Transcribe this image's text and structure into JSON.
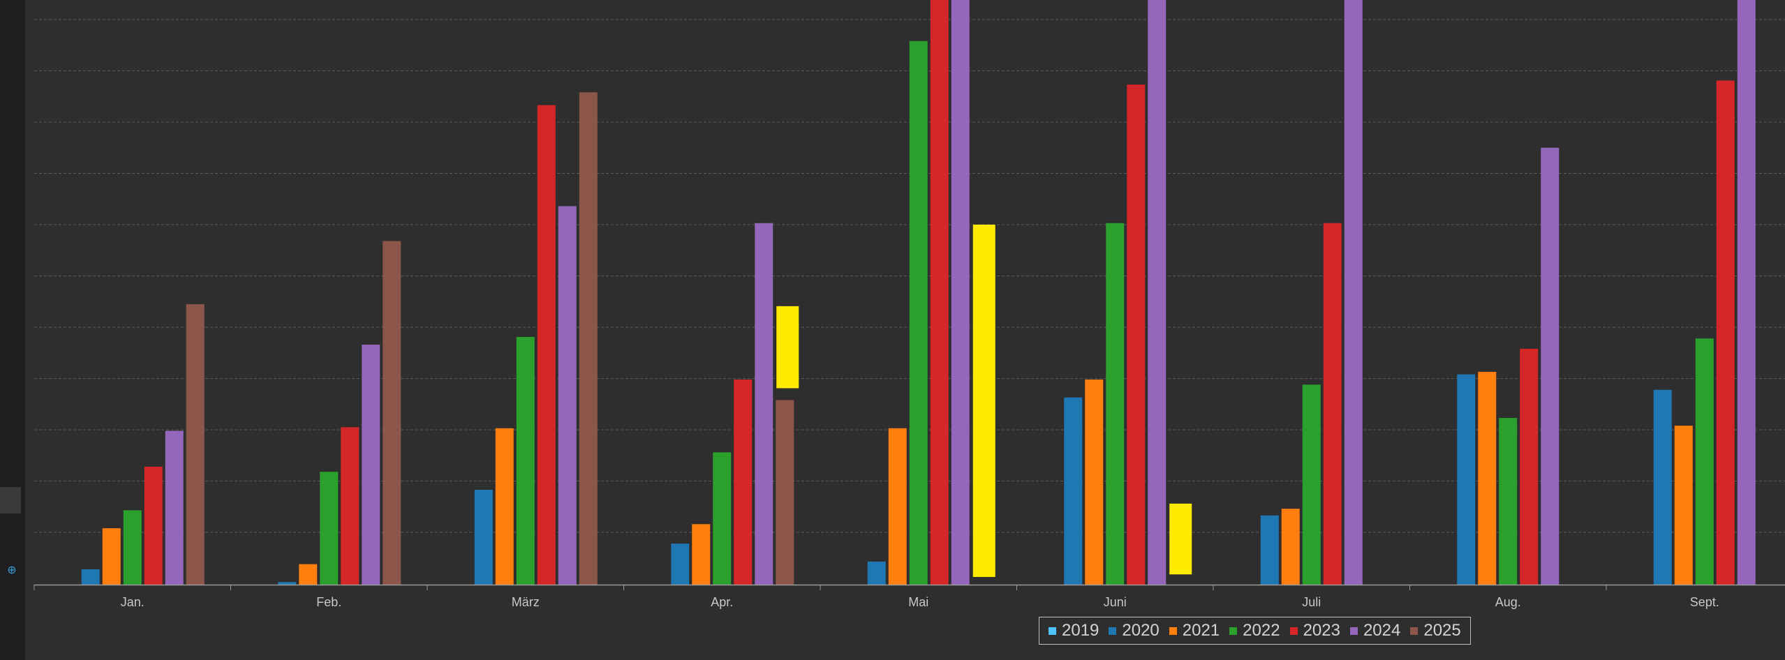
{
  "chart_data": {
    "type": "bar",
    "categories": [
      "Jan.",
      "Feb.",
      "März",
      "Apr.",
      "Mai",
      "Juni",
      "Juli",
      "Aug.",
      "Sept."
    ],
    "ylim": [
      0,
      11.4
    ],
    "grid": true,
    "legend_position": "bottom-center",
    "series": [
      {
        "name": "2019",
        "color": "#4fc3f7",
        "values": [
          0,
          0,
          0,
          0,
          0,
          0,
          0,
          0,
          0
        ]
      },
      {
        "name": "2020",
        "color": "#1f77b4",
        "values": [
          0.3,
          0.05,
          1.85,
          0.8,
          0.45,
          3.65,
          1.35,
          4.1,
          3.8
        ]
      },
      {
        "name": "2021",
        "color": "#ff7f0e",
        "values": [
          1.1,
          0.4,
          3.05,
          1.18,
          3.05,
          4.0,
          1.48,
          4.15,
          3.1
        ]
      },
      {
        "name": "2022",
        "color": "#2ca02c",
        "values": [
          1.45,
          2.2,
          4.83,
          2.58,
          10.6,
          7.05,
          3.9,
          3.25,
          4.8
        ]
      },
      {
        "name": "2023",
        "color": "#d62728",
        "values": [
          2.3,
          3.07,
          9.35,
          4.0,
          11.4,
          9.75,
          7.05,
          4.6,
          9.83
        ]
      },
      {
        "name": "2024",
        "color": "#9467bd",
        "values": [
          3.0,
          4.68,
          7.38,
          7.05,
          11.4,
          11.4,
          11.4,
          8.52,
          11.4
        ]
      },
      {
        "name": "2025",
        "color": "#8c564b",
        "values": [
          5.47,
          6.7,
          9.6,
          3.6,
          0,
          0,
          0,
          0,
          0
        ]
      }
    ],
    "highlights": [
      {
        "category": "Apr.",
        "color": "#ffea00",
        "from": 3.83,
        "to": 5.43
      },
      {
        "category": "Mai",
        "color": "#ffea00",
        "from": 0.15,
        "to": 7.02
      },
      {
        "category": "Juni",
        "color": "#ffea00",
        "from": 0.2,
        "to": 1.58
      }
    ]
  }
}
